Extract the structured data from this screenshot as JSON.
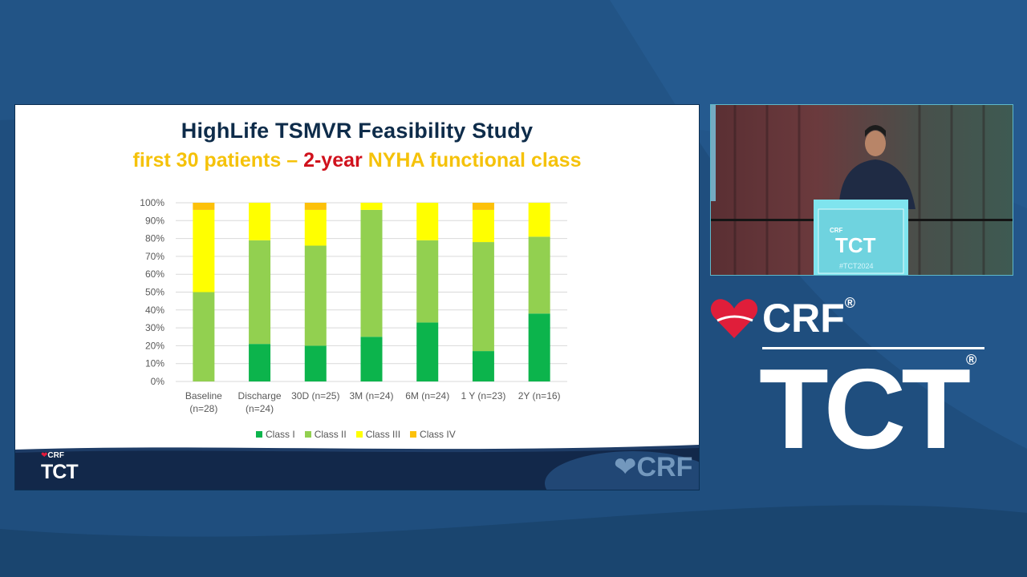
{
  "slide": {
    "title": "HighLife TSMVR Feasibility Study",
    "subtitle_part1": "first 30 patients – ",
    "subtitle_highlight": "2-year",
    "subtitle_part2": " NYHA functional class"
  },
  "branding": {
    "crf": "CRF",
    "tct": "TCT",
    "registered": "®",
    "podium_hashtag": "#TCT2024"
  },
  "colors": {
    "class_i": "#0cb44c",
    "class_ii": "#92d050",
    "class_iii": "#ffff00",
    "class_iv": "#fcc10a",
    "accent_red": "#d0111c",
    "title_navy": "#0e2c4a",
    "background_blue": "#1f4e7e"
  },
  "chart_data": {
    "type": "bar",
    "stacked": true,
    "categories": [
      "Baseline (n=28)",
      "Discharge (n=24)",
      "30D (n=25)",
      "3M (n=24)",
      "6M (n=24)",
      "1 Y (n=23)",
      "2Y (n=16)"
    ],
    "category_lines": [
      [
        "Baseline",
        "(n=28)"
      ],
      [
        "Discharge",
        "(n=24)"
      ],
      [
        "30D (n=25)"
      ],
      [
        "3M (n=24)"
      ],
      [
        "6M (n=24)"
      ],
      [
        "1 Y (n=23)"
      ],
      [
        "2Y (n=16)"
      ]
    ],
    "series": [
      {
        "name": "Class I",
        "values": [
          0,
          21,
          20,
          25,
          33,
          17,
          38
        ]
      },
      {
        "name": "Class II",
        "values": [
          50,
          58,
          56,
          71,
          46,
          61,
          43
        ]
      },
      {
        "name": "Class III",
        "values": [
          46,
          21,
          20,
          4,
          21,
          18,
          19
        ]
      },
      {
        "name": "Class IV",
        "values": [
          4,
          0,
          4,
          0,
          0,
          4,
          0
        ]
      }
    ],
    "ylim": [
      0,
      100
    ],
    "yticks": [
      "0%",
      "10%",
      "20%",
      "30%",
      "40%",
      "50%",
      "60%",
      "70%",
      "80%",
      "90%",
      "100%"
    ],
    "grid": true,
    "legend_position": "bottom"
  }
}
